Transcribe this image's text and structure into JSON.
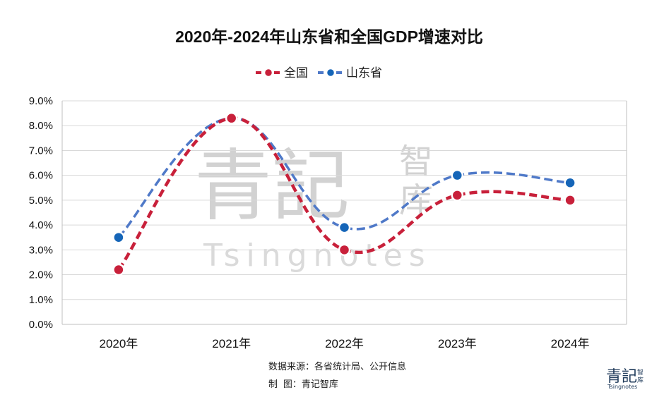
{
  "chart_data": {
    "type": "line",
    "title": "2020年-2024年山东省和全国GDP增速对比",
    "categories": [
      "2020年",
      "2021年",
      "2022年",
      "2023年",
      "2024年"
    ],
    "series": [
      {
        "name": "全国",
        "values": [
          2.2,
          8.3,
          3.0,
          5.2,
          5.0
        ],
        "color": "#c8203a"
      },
      {
        "name": "山东省",
        "values": [
          3.5,
          8.3,
          3.9,
          6.0,
          5.7
        ],
        "color": "#4f79c8",
        "marker_color": "#1565b8"
      }
    ],
    "y_ticks": [
      "0.0%",
      "1.0%",
      "2.0%",
      "3.0%",
      "4.0%",
      "5.0%",
      "6.0%",
      "7.0%",
      "8.0%",
      "9.0%"
    ],
    "ylim": [
      0,
      9
    ],
    "line_style": "dashed, smoothed",
    "legend_position": "top-center",
    "grid": true
  },
  "watermark": {
    "big": "青記",
    "small_top": "智",
    "small_bottom": "库",
    "latin": "Tsingnotes"
  },
  "footer": {
    "source": "数据来源：各省统计局、公开信息",
    "producer": "制    图：青记智库"
  },
  "logo": {
    "main": "青記",
    "sub_top": "智",
    "sub_bottom": "库",
    "latin": "Tsingnotes"
  }
}
